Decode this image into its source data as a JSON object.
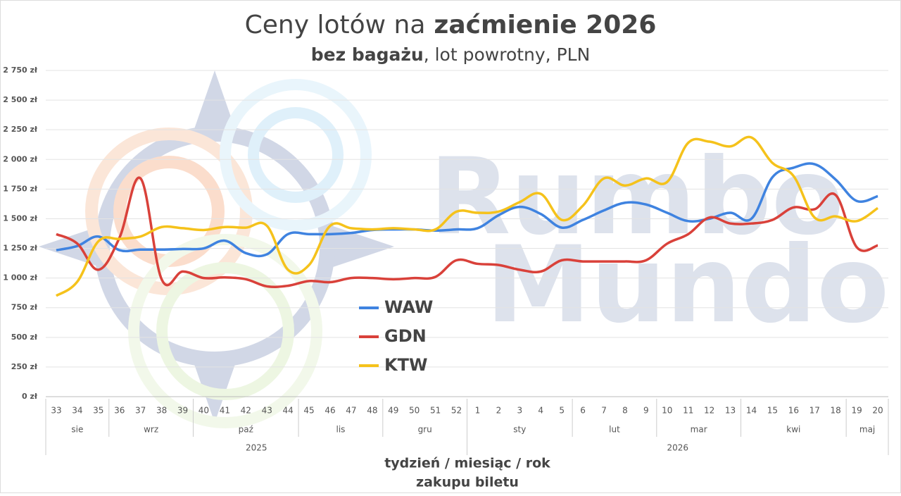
{
  "chart_data": {
    "type": "line",
    "title": {
      "normal": "Ceny lotów na",
      "bold": "zaćmienie 2026"
    },
    "subtitle": {
      "bold": "bez bagażu",
      "normal": ", lot powrotny, PLN"
    },
    "watermark": [
      "Rumbo",
      "Mundo"
    ],
    "categories": [
      "33",
      "34",
      "35",
      "36",
      "37",
      "38",
      "39",
      "40",
      "41",
      "42",
      "43",
      "44",
      "45",
      "46",
      "47",
      "48",
      "49",
      "50",
      "51",
      "52",
      "1",
      "2",
      "3",
      "4",
      "5",
      "6",
      "7",
      "8",
      "9",
      "10",
      "11",
      "12",
      "13",
      "14",
      "15",
      "16",
      "17",
      "18",
      "19",
      "20"
    ],
    "month_groups": [
      {
        "label": "sie",
        "n": 3
      },
      {
        "label": "wrz",
        "n": 4
      },
      {
        "label": "paź",
        "n": 5
      },
      {
        "label": "lis",
        "n": 4
      },
      {
        "label": "gru",
        "n": 4
      },
      {
        "label": "sty",
        "n": 5
      },
      {
        "label": "lut",
        "n": 4
      },
      {
        "label": "mar",
        "n": 4
      },
      {
        "label": "kwi",
        "n": 5
      },
      {
        "label": "maj",
        "n": 2
      }
    ],
    "year_groups": [
      {
        "label": "2025",
        "n": 20
      },
      {
        "label": "2026",
        "n": 20
      }
    ],
    "xlabel": [
      "tydzień / miesiąc / rok",
      "zakupu biletu"
    ],
    "series": [
      {
        "name": "WAW",
        "color": "#3f83e0",
        "values": [
          1235,
          1270,
          1350,
          1235,
          1240,
          1240,
          1245,
          1250,
          1315,
          1210,
          1200,
          1370,
          1370,
          1370,
          1380,
          1405,
          1410,
          1410,
          1400,
          1410,
          1420,
          1530,
          1600,
          1540,
          1425,
          1490,
          1570,
          1635,
          1620,
          1550,
          1480,
          1500,
          1550,
          1500,
          1850,
          1930,
          1960,
          1830,
          1650,
          1690
        ]
      },
      {
        "name": "GDN",
        "color": "#d9413a",
        "values": [
          1370,
          1290,
          1070,
          1340,
          1840,
          990,
          1055,
          1000,
          1005,
          990,
          930,
          935,
          975,
          965,
          1000,
          1000,
          990,
          1000,
          1010,
          1150,
          1120,
          1110,
          1070,
          1055,
          1150,
          1140,
          1140,
          1140,
          1150,
          1290,
          1370,
          1510,
          1460,
          1460,
          1490,
          1595,
          1580,
          1700,
          1260,
          1275
        ]
      },
      {
        "name": "KTW",
        "color": "#f5c21b",
        "values": [
          850,
          970,
          1310,
          1330,
          1350,
          1430,
          1420,
          1405,
          1430,
          1425,
          1440,
          1070,
          1110,
          1440,
          1420,
          1410,
          1420,
          1410,
          1410,
          1560,
          1550,
          1560,
          1640,
          1710,
          1490,
          1610,
          1840,
          1780,
          1840,
          1810,
          2140,
          2150,
          2110,
          2185,
          1970,
          1860,
          1510,
          1520,
          1480,
          1590
        ]
      }
    ],
    "ylim": [
      0,
      2750
    ],
    "yticks": [
      {
        "value": 0,
        "label": "0 zł"
      },
      {
        "value": 250,
        "label": "250 zł"
      },
      {
        "value": 500,
        "label": "500 zł"
      },
      {
        "value": 750,
        "label": "750 zł"
      },
      {
        "value": 1000,
        "label": "1 000 zł"
      },
      {
        "value": 1250,
        "label": "1 250 zł"
      },
      {
        "value": 1500,
        "label": "1 500 zł"
      },
      {
        "value": 1750,
        "label": "1 750 zł"
      },
      {
        "value": 2000,
        "label": "2 000 zł"
      },
      {
        "value": 2250,
        "label": "2 250 zł"
      },
      {
        "value": 2500,
        "label": "2 500 zł"
      },
      {
        "value": 2750,
        "label": "2 750 zł"
      }
    ],
    "grid": true,
    "legend": "center"
  }
}
